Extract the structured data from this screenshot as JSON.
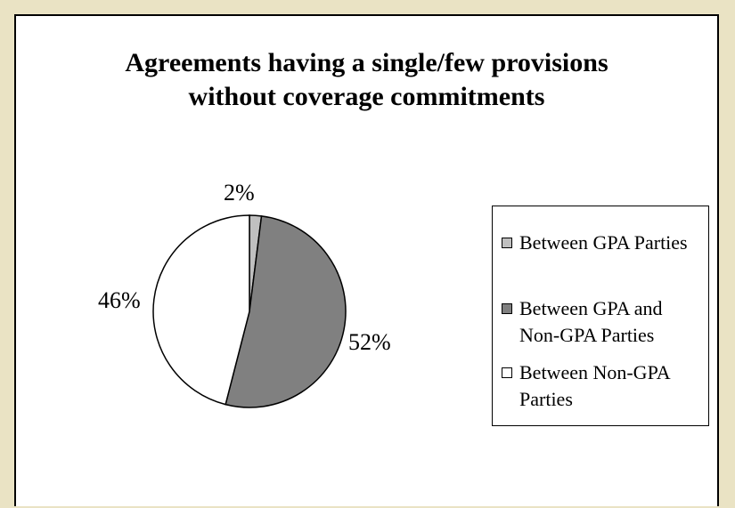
{
  "chart_data": {
    "type": "pie",
    "title_lines": [
      "Agreements having a single/few provisions",
      "without coverage commitments"
    ],
    "slices": [
      {
        "label": "Between GPA Parties",
        "value": 2,
        "display": "2%",
        "color": "#c0c0c0"
      },
      {
        "label": "Between GPA and Non-GPA Parties",
        "value": 52,
        "display": "52%",
        "color": "#808080"
      },
      {
        "label": "Between Non-GPA Parties",
        "value": 46,
        "display": "46%",
        "color": "#ffffff"
      }
    ],
    "legend_placement": "right",
    "legend_lines": [
      [
        "Between GPA Parties"
      ],
      [
        "Between GPA and",
        "Non-GPA Parties"
      ],
      [
        "Between Non-GPA",
        "Parties"
      ]
    ]
  }
}
